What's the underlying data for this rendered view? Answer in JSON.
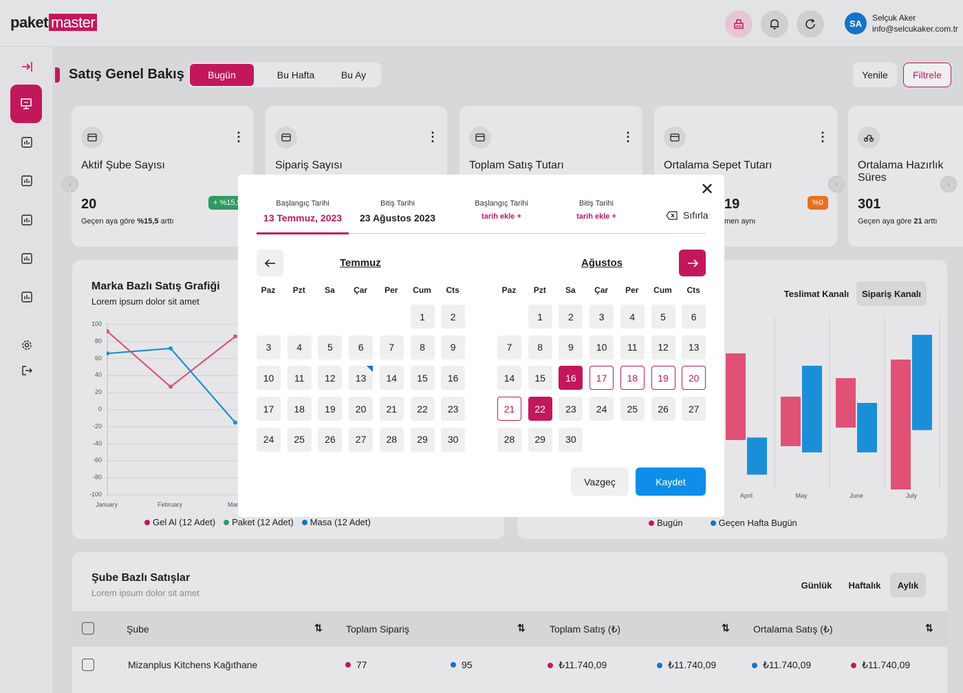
{
  "app": {
    "logo_a": "pa",
    "logo_mid": "ket",
    "logo_b": "master"
  },
  "header": {
    "user_initials": "SA",
    "user_name": "Selçuk Aker",
    "user_email": "info@selcukaker.com.tr"
  },
  "page": {
    "title": "Satış Genel Bakış",
    "ranges": [
      "Bugün",
      "Bu Hafta",
      "Bu Ay"
    ],
    "refresh_label": "Yenile",
    "filter_label": "Filtrele"
  },
  "cards": [
    {
      "title": "Aktif Şube Sayısı",
      "value": "20",
      "sub_prefix": "Geçen aya göre ",
      "sub_strong": "%15,5",
      "sub_suffix": " arttı",
      "badge": "+ %15,5"
    },
    {
      "title": "Sipariş Sayısı"
    },
    {
      "title": "Toplam Satış Tutarı"
    },
    {
      "title": "Ortalama Sepet Tutarı",
      "value_partial": "19",
      "sub_partial": "men aynı",
      "badge": "%0"
    },
    {
      "title": "Ortalama Hazırlık Süres",
      "value": "301",
      "sub_prefix": "Geçen aya göre ",
      "sub_strong": "21",
      "sub_suffix": " arttı"
    }
  ],
  "line_chart": {
    "title": "Marka Bazlı Satış Grafiği",
    "subtitle": "Lorem ipsum dolor sit amet",
    "legend": [
      "Gel Al (12 Adet)",
      "Paket (12 Adet)",
      "Masa (12 Adet)"
    ]
  },
  "bar_chart": {
    "channels": [
      "Teslimat Kanalı",
      "Sipariş Kanalı"
    ],
    "legend": [
      "Bugün",
      "Geçen Hafta Bugün"
    ]
  },
  "chart_data": [
    {
      "type": "line",
      "title": "Marka Bazlı Satış Grafiği",
      "x": [
        "January",
        "February",
        "Marc"
      ],
      "ylim": [
        -100,
        100
      ],
      "yticks": [
        "100",
        "80",
        "60",
        "40",
        "20",
        "0",
        "-20",
        "-40",
        "-60",
        "-80",
        "-100"
      ],
      "series": [
        {
          "name": "Gel Al (12 Adet)",
          "color": "#e05275",
          "values": [
            92,
            27,
            86
          ]
        },
        {
          "name": "Masa (12 Adet)",
          "color": "#1a8fd8",
          "values": [
            66,
            72,
            -15
          ]
        }
      ]
    },
    {
      "type": "bar",
      "x": [
        "April",
        "May",
        "June",
        "July"
      ],
      "series": [
        {
          "name": "Bugün",
          "color": "#e05275",
          "ranges": [
            [
              40,
              110
            ],
            [
              35,
              75
            ],
            [
              50,
              90
            ],
            [
              0,
              105
            ]
          ]
        },
        {
          "name": "Geçen Hafta Bugün",
          "color": "#1a8fd8",
          "ranges": [
            [
              12,
              42
            ],
            [
              30,
              100
            ],
            [
              30,
              70
            ],
            [
              48,
              125
            ]
          ]
        }
      ]
    }
  ],
  "table": {
    "title": "Şube Bazlı Satışlar",
    "subtitle": "Lorem ipsum dolor sit amet",
    "tabs": [
      "Günlük",
      "Haftalık",
      "Aylık"
    ],
    "columns": [
      "Şube",
      "Toplam Sipariş",
      "Toplam Satış (₺)",
      "Ortalama Satış (₺)"
    ],
    "rows": [
      {
        "branch": "Mizanplus Kitchens Kağıthane",
        "orders_a": "77",
        "orders_b": "95",
        "sales_a": "₺11.740,09",
        "sales_b": "₺11.740,09",
        "avg_a": "₺11.740,09",
        "avg_b": "₺11.740,09"
      }
    ]
  },
  "date_modal": {
    "tabs": [
      {
        "label": "Başlangıç Tarihi",
        "value": "13 Temmuz, 2023"
      },
      {
        "label": "Bitiş Tarihi",
        "value": "23 Ağustos 2023"
      },
      {
        "label": "Başlangıç Tarihi",
        "value": "tarih ekle +"
      },
      {
        "label": "Bitiş Tarihi",
        "value": "tarih ekle +"
      }
    ],
    "reset_label": "Sıfırla",
    "weekdays": [
      "Paz",
      "Pzt",
      "Sa",
      "Çar",
      "Per",
      "Cum",
      "Cts"
    ],
    "months": [
      {
        "name": "Temmuz",
        "start_offset": 5,
        "days": 30
      },
      {
        "name": "Ağustos",
        "start_offset": 1,
        "days": 30
      }
    ],
    "cancel_label": "Vazgeç",
    "save_label": "Kaydet"
  }
}
